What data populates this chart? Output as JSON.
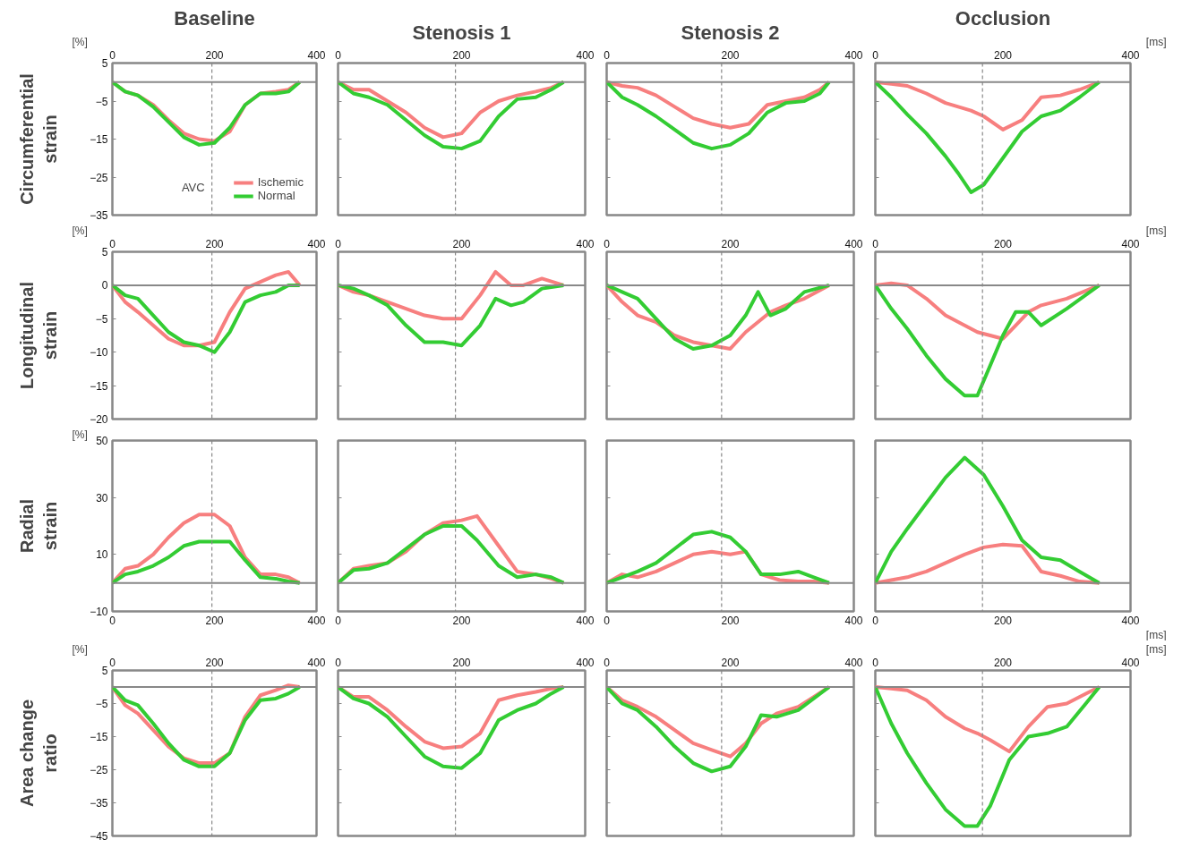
{
  "chart_data": [
    {
      "type": "line",
      "title": "Baseline",
      "ylabel": "Circumferential strain",
      "x": [
        0,
        25,
        50,
        80,
        110,
        140,
        170,
        200,
        230,
        260,
        290,
        320,
        345,
        367
      ],
      "xlim": [
        0,
        400
      ],
      "xticks": [
        0,
        200,
        400
      ],
      "ylim": [
        -35,
        5
      ],
      "yticks": [
        5,
        -5,
        -15,
        -25,
        -35
      ],
      "grid": false,
      "legend": "bottom right",
      "annotations": [
        "[%]"
      ],
      "ref_lines": [
        {
          "axis": "y",
          "value": 0,
          "label": null,
          "line_style": "solid"
        },
        {
          "axis": "x",
          "value": 195,
          "label": "AVC",
          "line_style": "dashed"
        }
      ],
      "series": [
        {
          "name": "Ischemic",
          "color": "#f77f7f",
          "values": [
            0,
            -2.5,
            -3.5,
            -6,
            -10,
            -13.5,
            -15,
            -15.5,
            -13,
            -6,
            -3,
            -2.5,
            -2,
            0
          ]
        },
        {
          "name": "Normal",
          "color": "#33cc33",
          "values": [
            0,
            -2.5,
            -3.5,
            -6.5,
            -10.5,
            -14.5,
            -16.5,
            -16,
            -12,
            -6,
            -3,
            -3,
            -2.5,
            0
          ]
        }
      ]
    },
    {
      "type": "line",
      "title": "Stenosis 1",
      "x": [
        0,
        25,
        50,
        80,
        110,
        140,
        170,
        200,
        230,
        260,
        290,
        320,
        345,
        365
      ],
      "xlim": [
        0,
        400
      ],
      "xticks": [
        0,
        200,
        400
      ],
      "ylim": [
        -35,
        5
      ],
      "yticks": [
        5,
        -5,
        -15,
        -25,
        -35
      ],
      "tick_labels": "x",
      "grid": false,
      "ref_lines": [
        {
          "axis": "y",
          "value": 0,
          "label": null,
          "line_style": "solid"
        },
        {
          "axis": "x",
          "value": 190,
          "label": null,
          "line_style": "dashed"
        }
      ],
      "series": [
        {
          "color": "#f77f7f",
          "values": [
            0,
            -2,
            -2,
            -5,
            -8,
            -12,
            -14.5,
            -13.5,
            -8,
            -5,
            -3.5,
            -2.5,
            -1.5,
            0
          ]
        },
        {
          "color": "#33cc33",
          "values": [
            0,
            -3,
            -4,
            -6,
            -10,
            -14,
            -17,
            -17.5,
            -15.5,
            -9,
            -4.5,
            -4,
            -2,
            0
          ]
        }
      ]
    },
    {
      "type": "line",
      "title": "Stenosis 2",
      "x": [
        0,
        25,
        50,
        80,
        110,
        140,
        170,
        200,
        230,
        260,
        290,
        320,
        345,
        360
      ],
      "xlim": [
        0,
        400
      ],
      "xticks": [
        0,
        200,
        400
      ],
      "ylim": [
        -35,
        5
      ],
      "yticks": [
        5,
        -5,
        -15,
        -25,
        -35
      ],
      "tick_labels": "x",
      "grid": false,
      "ref_lines": [
        {
          "axis": "y",
          "value": 0,
          "label": null,
          "line_style": "solid"
        },
        {
          "axis": "x",
          "value": 186,
          "label": null,
          "line_style": "dashed"
        }
      ],
      "series": [
        {
          "color": "#f77f7f",
          "values": [
            0,
            -1,
            -1.5,
            -3.5,
            -6.5,
            -9.5,
            -11,
            -12,
            -11,
            -6,
            -5,
            -4,
            -2,
            0
          ]
        },
        {
          "color": "#33cc33",
          "values": [
            0,
            -4,
            -6,
            -9,
            -12.5,
            -16,
            -17.5,
            -16.5,
            -13.5,
            -8,
            -5.5,
            -5,
            -3,
            0
          ]
        }
      ]
    },
    {
      "type": "line",
      "title": "Occlusion",
      "x": [
        0,
        25,
        50,
        80,
        110,
        130,
        150,
        170,
        200,
        230,
        260,
        290,
        320,
        351
      ],
      "xlim": [
        0,
        400
      ],
      "xticks": [
        0,
        200,
        400
      ],
      "ylim": [
        -35,
        5
      ],
      "yticks": [
        5,
        -5,
        -15,
        -25,
        -35
      ],
      "tick_labels": "x",
      "grid": false,
      "annotations": [
        "[ms]"
      ],
      "ref_lines": [
        {
          "axis": "y",
          "value": 0,
          "label": null,
          "line_style": "solid"
        },
        {
          "axis": "x",
          "value": 168,
          "label": null,
          "line_style": "dashed"
        }
      ],
      "series": [
        {
          "color": "#f77f7f",
          "values": [
            0,
            -0.5,
            -1,
            -3,
            -5.5,
            -6.5,
            -7.5,
            -9,
            -12.5,
            -10,
            -4,
            -3.5,
            -2,
            0
          ]
        },
        {
          "color": "#33cc33",
          "values": [
            0,
            -4,
            -8.5,
            -13.5,
            -19.5,
            -24,
            -29,
            -27,
            -20,
            -13,
            -9,
            -7.5,
            -4,
            0
          ]
        }
      ]
    },
    {
      "type": "line",
      "ylabel": "Longitudinal strain",
      "x": [
        0,
        25,
        50,
        80,
        110,
        140,
        170,
        200,
        230,
        260,
        290,
        320,
        345,
        367
      ],
      "xlim": [
        0,
        400
      ],
      "xticks": [
        0,
        200,
        400
      ],
      "ylim": [
        -20,
        5
      ],
      "yticks": [
        5,
        0,
        -5,
        -10,
        -15,
        -20
      ],
      "grid": false,
      "annotations": [
        "[%]"
      ],
      "ref_lines": [
        {
          "axis": "y",
          "value": 0,
          "label": null,
          "line_style": "solid"
        },
        {
          "axis": "x",
          "value": 195,
          "label": null,
          "line_style": "dashed"
        }
      ],
      "series": [
        {
          "color": "#f77f7f",
          "values": [
            0,
            -2.5,
            -4,
            -6,
            -8,
            -9,
            -9,
            -8.5,
            -4,
            -0.5,
            0.5,
            1.5,
            2,
            0
          ]
        },
        {
          "color": "#33cc33",
          "values": [
            0,
            -1.5,
            -2,
            -4.5,
            -7,
            -8.5,
            -9,
            -10,
            -7,
            -2.5,
            -1.5,
            -1,
            0,
            0
          ]
        }
      ]
    },
    {
      "type": "line",
      "x": [
        0,
        25,
        50,
        80,
        110,
        140,
        170,
        200,
        230,
        255,
        280,
        300,
        330,
        365
      ],
      "xlim": [
        0,
        400
      ],
      "xticks": [
        0,
        200,
        400
      ],
      "ylim": [
        -20,
        5
      ],
      "yticks": [
        5,
        0,
        -5,
        -10,
        -15,
        -20
      ],
      "tick_labels": "x",
      "grid": false,
      "ref_lines": [
        {
          "axis": "y",
          "value": 0,
          "label": null,
          "line_style": "solid"
        },
        {
          "axis": "x",
          "value": 190,
          "label": null,
          "line_style": "dashed"
        }
      ],
      "series": [
        {
          "color": "#f77f7f",
          "values": [
            0,
            -1,
            -1.5,
            -2.5,
            -3.5,
            -4.5,
            -5,
            -5,
            -1.5,
            2,
            0,
            0,
            1,
            0
          ]
        },
        {
          "color": "#33cc33",
          "values": [
            0,
            -0.5,
            -1.5,
            -3,
            -6,
            -8.5,
            -8.5,
            -9,
            -6,
            -2,
            -3,
            -2.5,
            -0.5,
            0
          ]
        }
      ]
    },
    {
      "type": "line",
      "x": [
        0,
        25,
        50,
        80,
        110,
        140,
        170,
        200,
        225,
        245,
        265,
        290,
        320,
        360
      ],
      "xlim": [
        0,
        400
      ],
      "xticks": [
        0,
        200,
        400
      ],
      "ylim": [
        -20,
        5
      ],
      "yticks": [
        5,
        0,
        -5,
        -10,
        -15,
        -20
      ],
      "tick_labels": "x",
      "grid": false,
      "ref_lines": [
        {
          "axis": "y",
          "value": 0,
          "label": null,
          "line_style": "solid"
        },
        {
          "axis": "x",
          "value": 186,
          "label": null,
          "line_style": "dashed"
        }
      ],
      "series": [
        {
          "color": "#f77f7f",
          "values": [
            0,
            -2.5,
            -4.5,
            -5.5,
            -7.5,
            -8.5,
            -9,
            -9.5,
            -7,
            -5.5,
            -4,
            -3,
            -2,
            0
          ]
        },
        {
          "color": "#33cc33",
          "values": [
            0,
            -1,
            -2,
            -5,
            -8,
            -9.5,
            -9,
            -7.5,
            -4.5,
            -1,
            -4.5,
            -3.5,
            -1,
            0
          ]
        }
      ]
    },
    {
      "type": "line",
      "x": [
        0,
        25,
        50,
        80,
        110,
        140,
        160,
        180,
        200,
        220,
        240,
        260,
        300,
        351
      ],
      "xlim": [
        0,
        400
      ],
      "xticks": [
        0,
        200,
        400
      ],
      "ylim": [
        -20,
        5
      ],
      "yticks": [
        5,
        0,
        -5,
        -10,
        -15,
        -20
      ],
      "tick_labels": "x",
      "grid": false,
      "annotations": [
        "[ms]"
      ],
      "ref_lines": [
        {
          "axis": "y",
          "value": 0,
          "label": null,
          "line_style": "solid"
        },
        {
          "axis": "x",
          "value": 168,
          "label": null,
          "line_style": "dashed"
        }
      ],
      "series": [
        {
          "color": "#f77f7f",
          "values": [
            0,
            0.3,
            0,
            -2,
            -4.5,
            -6,
            -7,
            -7.5,
            -8,
            -6,
            -4,
            -3,
            -2,
            0
          ]
        },
        {
          "color": "#33cc33",
          "values": [
            0,
            -3.5,
            -6.5,
            -10.5,
            -14,
            -16.5,
            -16.5,
            -12,
            -7.5,
            -4,
            -4,
            -6,
            -3.5,
            0
          ]
        }
      ]
    },
    {
      "type": "line",
      "ylabel": "Radial strain",
      "x": [
        0,
        25,
        50,
        80,
        110,
        140,
        170,
        200,
        230,
        260,
        290,
        320,
        345,
        367
      ],
      "xlim": [
        0,
        400
      ],
      "xticks": [
        0,
        200,
        400
      ],
      "ylim": [
        -10,
        50
      ],
      "yticks": [
        50,
        30,
        10,
        -10
      ],
      "grid": false,
      "annotations": [
        "[%]"
      ],
      "ref_lines": [
        {
          "axis": "y",
          "value": 0,
          "label": null,
          "line_style": "solid"
        },
        {
          "axis": "x",
          "value": 195,
          "label": null,
          "line_style": "dashed"
        }
      ],
      "series": [
        {
          "color": "#f77f7f",
          "values": [
            0,
            5,
            6,
            10,
            16,
            21,
            24,
            24,
            20,
            9,
            3,
            3,
            2,
            0
          ]
        },
        {
          "color": "#33cc33",
          "values": [
            0,
            3,
            4,
            6,
            9,
            13,
            14.5,
            14.5,
            14.5,
            8,
            2,
            1.5,
            0.5,
            0
          ]
        }
      ]
    },
    {
      "type": "line",
      "x": [
        0,
        25,
        50,
        80,
        110,
        140,
        170,
        200,
        225,
        260,
        290,
        320,
        345,
        365
      ],
      "xlim": [
        0,
        400
      ],
      "xticks": [
        0,
        200,
        400
      ],
      "ylim": [
        -10,
        50
      ],
      "yticks": [
        50,
        30,
        10,
        -10
      ],
      "tick_labels": "x",
      "grid": false,
      "ref_lines": [
        {
          "axis": "y",
          "value": 0,
          "label": null,
          "line_style": "solid"
        },
        {
          "axis": "x",
          "value": 190,
          "label": null,
          "line_style": "dashed"
        }
      ],
      "series": [
        {
          "color": "#f77f7f",
          "values": [
            0,
            5,
            6,
            7,
            11,
            17,
            21,
            22,
            23.5,
            13,
            4,
            3,
            1.5,
            0
          ]
        },
        {
          "color": "#33cc33",
          "values": [
            0,
            4.5,
            5,
            7,
            12,
            17,
            20,
            20,
            15,
            6,
            2,
            3,
            2,
            0
          ]
        }
      ]
    },
    {
      "type": "line",
      "x": [
        0,
        25,
        50,
        80,
        110,
        140,
        170,
        200,
        225,
        250,
        280,
        310,
        335,
        360
      ],
      "xlim": [
        0,
        400
      ],
      "xticks": [
        0,
        200,
        400
      ],
      "ylim": [
        -10,
        50
      ],
      "yticks": [
        50,
        30,
        10,
        -10
      ],
      "tick_labels": "x",
      "grid": false,
      "ref_lines": [
        {
          "axis": "y",
          "value": 0,
          "label": null,
          "line_style": "solid"
        },
        {
          "axis": "x",
          "value": 186,
          "label": null,
          "line_style": "dashed"
        }
      ],
      "series": [
        {
          "color": "#f77f7f",
          "values": [
            0,
            3,
            2,
            4,
            7,
            10,
            11,
            10,
            11,
            3,
            1,
            0.5,
            0.5,
            0
          ]
        },
        {
          "color": "#33cc33",
          "values": [
            0,
            2,
            4,
            7,
            12,
            17,
            18,
            16,
            11,
            3,
            3,
            4,
            2,
            0
          ]
        }
      ]
    },
    {
      "type": "line",
      "x": [
        0,
        25,
        50,
        80,
        110,
        140,
        170,
        200,
        230,
        260,
        290,
        320,
        351
      ],
      "xlim": [
        0,
        400
      ],
      "xticks": [
        0,
        200,
        400
      ],
      "ylim": [
        -10,
        50
      ],
      "yticks": [
        50,
        30,
        10,
        -10
      ],
      "tick_labels": "x",
      "grid": false,
      "annotations": [
        "[ms]"
      ],
      "ref_lines": [
        {
          "axis": "y",
          "value": 0,
          "label": null,
          "line_style": "solid"
        },
        {
          "axis": "x",
          "value": 168,
          "label": null,
          "line_style": "dashed"
        }
      ],
      "series": [
        {
          "color": "#f77f7f",
          "values": [
            0,
            1,
            2,
            4,
            7,
            10,
            12.5,
            13.5,
            13,
            4,
            2.5,
            0.5,
            0
          ]
        },
        {
          "color": "#33cc33",
          "values": [
            0,
            11,
            19,
            28,
            37,
            44,
            38,
            27,
            15,
            9,
            8,
            4,
            0
          ]
        }
      ]
    },
    {
      "type": "line",
      "ylabel": "Area change ratio",
      "x": [
        0,
        25,
        50,
        80,
        110,
        140,
        170,
        200,
        230,
        260,
        290,
        320,
        345,
        367
      ],
      "xlim": [
        0,
        400
      ],
      "xticks": [
        0,
        200,
        400
      ],
      "ylim": [
        -45,
        5
      ],
      "yticks": [
        5,
        -5,
        -15,
        -25,
        -35,
        -45
      ],
      "grid": false,
      "annotations": [
        "[%]"
      ],
      "ref_lines": [
        {
          "axis": "y",
          "value": 0,
          "label": null,
          "line_style": "solid"
        },
        {
          "axis": "x",
          "value": 195,
          "label": null,
          "line_style": "dashed"
        }
      ],
      "series": [
        {
          "color": "#f77f7f",
          "values": [
            0,
            -5.5,
            -8,
            -13,
            -18,
            -21.5,
            -23,
            -23,
            -20,
            -9,
            -2.5,
            -1,
            0.5,
            0
          ]
        },
        {
          "color": "#33cc33",
          "values": [
            0,
            -4,
            -5.5,
            -11,
            -17,
            -22,
            -24,
            -24,
            -20,
            -10,
            -4,
            -3.5,
            -2,
            0
          ]
        }
      ]
    },
    {
      "type": "line",
      "x": [
        0,
        25,
        50,
        80,
        110,
        140,
        170,
        200,
        230,
        260,
        290,
        320,
        345,
        365
      ],
      "xlim": [
        0,
        400
      ],
      "xticks": [
        0,
        200,
        400
      ],
      "ylim": [
        -45,
        5
      ],
      "yticks": [
        5,
        -5,
        -15,
        -25,
        -35,
        -45
      ],
      "tick_labels": "x",
      "grid": false,
      "ref_lines": [
        {
          "axis": "y",
          "value": 0,
          "label": null,
          "line_style": "solid"
        },
        {
          "axis": "x",
          "value": 190,
          "label": null,
          "line_style": "dashed"
        }
      ],
      "series": [
        {
          "color": "#f77f7f",
          "values": [
            0,
            -3,
            -3,
            -7,
            -12,
            -16.5,
            -18.5,
            -18,
            -14,
            -4,
            -2.5,
            -1.5,
            -0.5,
            0
          ]
        },
        {
          "color": "#33cc33",
          "values": [
            0,
            -3.5,
            -5,
            -9,
            -15,
            -21,
            -24,
            -24.5,
            -20,
            -10,
            -7,
            -5,
            -2,
            0
          ]
        }
      ]
    },
    {
      "type": "line",
      "x": [
        0,
        25,
        50,
        80,
        110,
        140,
        170,
        200,
        225,
        250,
        275,
        310,
        335,
        360
      ],
      "xlim": [
        0,
        400
      ],
      "xticks": [
        0,
        200,
        400
      ],
      "ylim": [
        -45,
        5
      ],
      "yticks": [
        5,
        -5,
        -15,
        -25,
        -35,
        -45
      ],
      "tick_labels": "x",
      "grid": false,
      "ref_lines": [
        {
          "axis": "y",
          "value": 0,
          "label": null,
          "line_style": "solid"
        },
        {
          "axis": "x",
          "value": 186,
          "label": null,
          "line_style": "dashed"
        }
      ],
      "series": [
        {
          "color": "#f77f7f",
          "values": [
            0,
            -4,
            -6,
            -9,
            -13,
            -17,
            -19,
            -21,
            -17,
            -11,
            -8,
            -6,
            -3,
            0
          ]
        },
        {
          "color": "#33cc33",
          "values": [
            0,
            -5,
            -7,
            -12,
            -18,
            -23,
            -25.5,
            -24,
            -18,
            -8.5,
            -9,
            -7,
            -3.5,
            0
          ]
        }
      ]
    },
    {
      "type": "line",
      "x": [
        0,
        25,
        50,
        80,
        110,
        140,
        160,
        180,
        210,
        240,
        270,
        300,
        330,
        351
      ],
      "xlim": [
        0,
        400
      ],
      "xticks": [
        0,
        200,
        400
      ],
      "ylim": [
        -45,
        5
      ],
      "yticks": [
        5,
        -5,
        -15,
        -25,
        -35,
        -45
      ],
      "tick_labels": "x",
      "grid": false,
      "annotations": [
        "[ms]"
      ],
      "ref_lines": [
        {
          "axis": "y",
          "value": 0,
          "label": null,
          "line_style": "solid"
        },
        {
          "axis": "x",
          "value": 168,
          "label": null,
          "line_style": "dashed"
        }
      ],
      "series": [
        {
          "color": "#f77f7f",
          "values": [
            0,
            -0.5,
            -1,
            -4,
            -9,
            -12.5,
            -14,
            -16,
            -19.5,
            -12,
            -6,
            -5,
            -2,
            0
          ]
        },
        {
          "color": "#33cc33",
          "values": [
            0,
            -11,
            -20,
            -29,
            -37,
            -42,
            -42,
            -36,
            -22,
            -15,
            -14,
            -12,
            -5,
            0
          ]
        }
      ]
    }
  ]
}
